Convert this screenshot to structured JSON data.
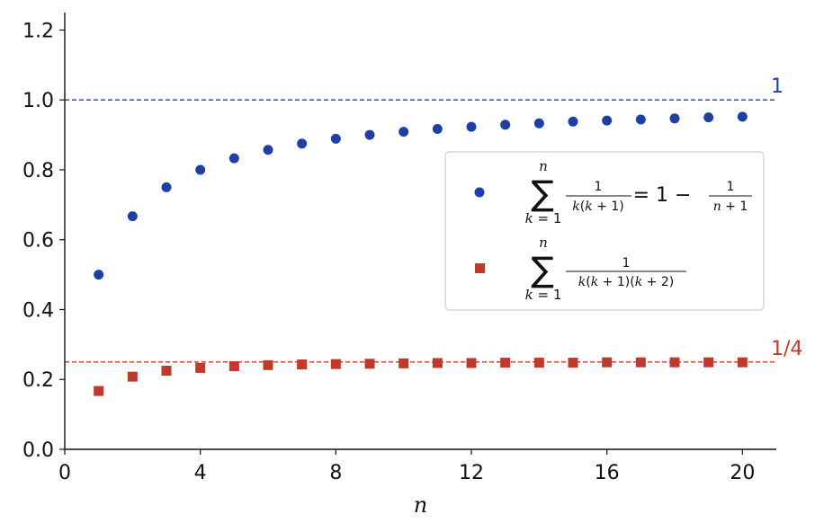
{
  "chart_data": {
    "type": "scatter",
    "xlabel": "n",
    "xlim": [
      0,
      21
    ],
    "ylim": [
      0,
      1.25
    ],
    "xticks": [
      "0",
      "4",
      "8",
      "12",
      "16",
      "20"
    ],
    "yticks": [
      "0.0",
      "0.2",
      "0.4",
      "0.6",
      "0.8",
      "1.0",
      "1.2"
    ],
    "grid": false,
    "legend_position": "center-right",
    "x": [
      1,
      2,
      3,
      4,
      5,
      6,
      7,
      8,
      9,
      10,
      11,
      12,
      13,
      14,
      15,
      16,
      17,
      18,
      19,
      20
    ],
    "series": [
      {
        "marker": "circle",
        "color": "#1f3fa8",
        "values": [
          0.5,
          0.667,
          0.75,
          0.8,
          0.833,
          0.857,
          0.875,
          0.889,
          0.9,
          0.909,
          0.917,
          0.923,
          0.929,
          0.933,
          0.938,
          0.941,
          0.944,
          0.947,
          0.95,
          0.952
        ]
      },
      {
        "marker": "square",
        "color": "#c0392b",
        "values": [
          0.167,
          0.208,
          0.225,
          0.233,
          0.238,
          0.241,
          0.243,
          0.244,
          0.245,
          0.246,
          0.247,
          0.247,
          0.248,
          0.248,
          0.248,
          0.249,
          0.249,
          0.249,
          0.249,
          0.249
        ]
      }
    ],
    "reference_lines": [
      {
        "y": 1.0,
        "label": "1",
        "color": "#1f3fa8"
      },
      {
        "y": 0.25,
        "label": "1/4",
        "color": "#c0392b"
      }
    ]
  }
}
